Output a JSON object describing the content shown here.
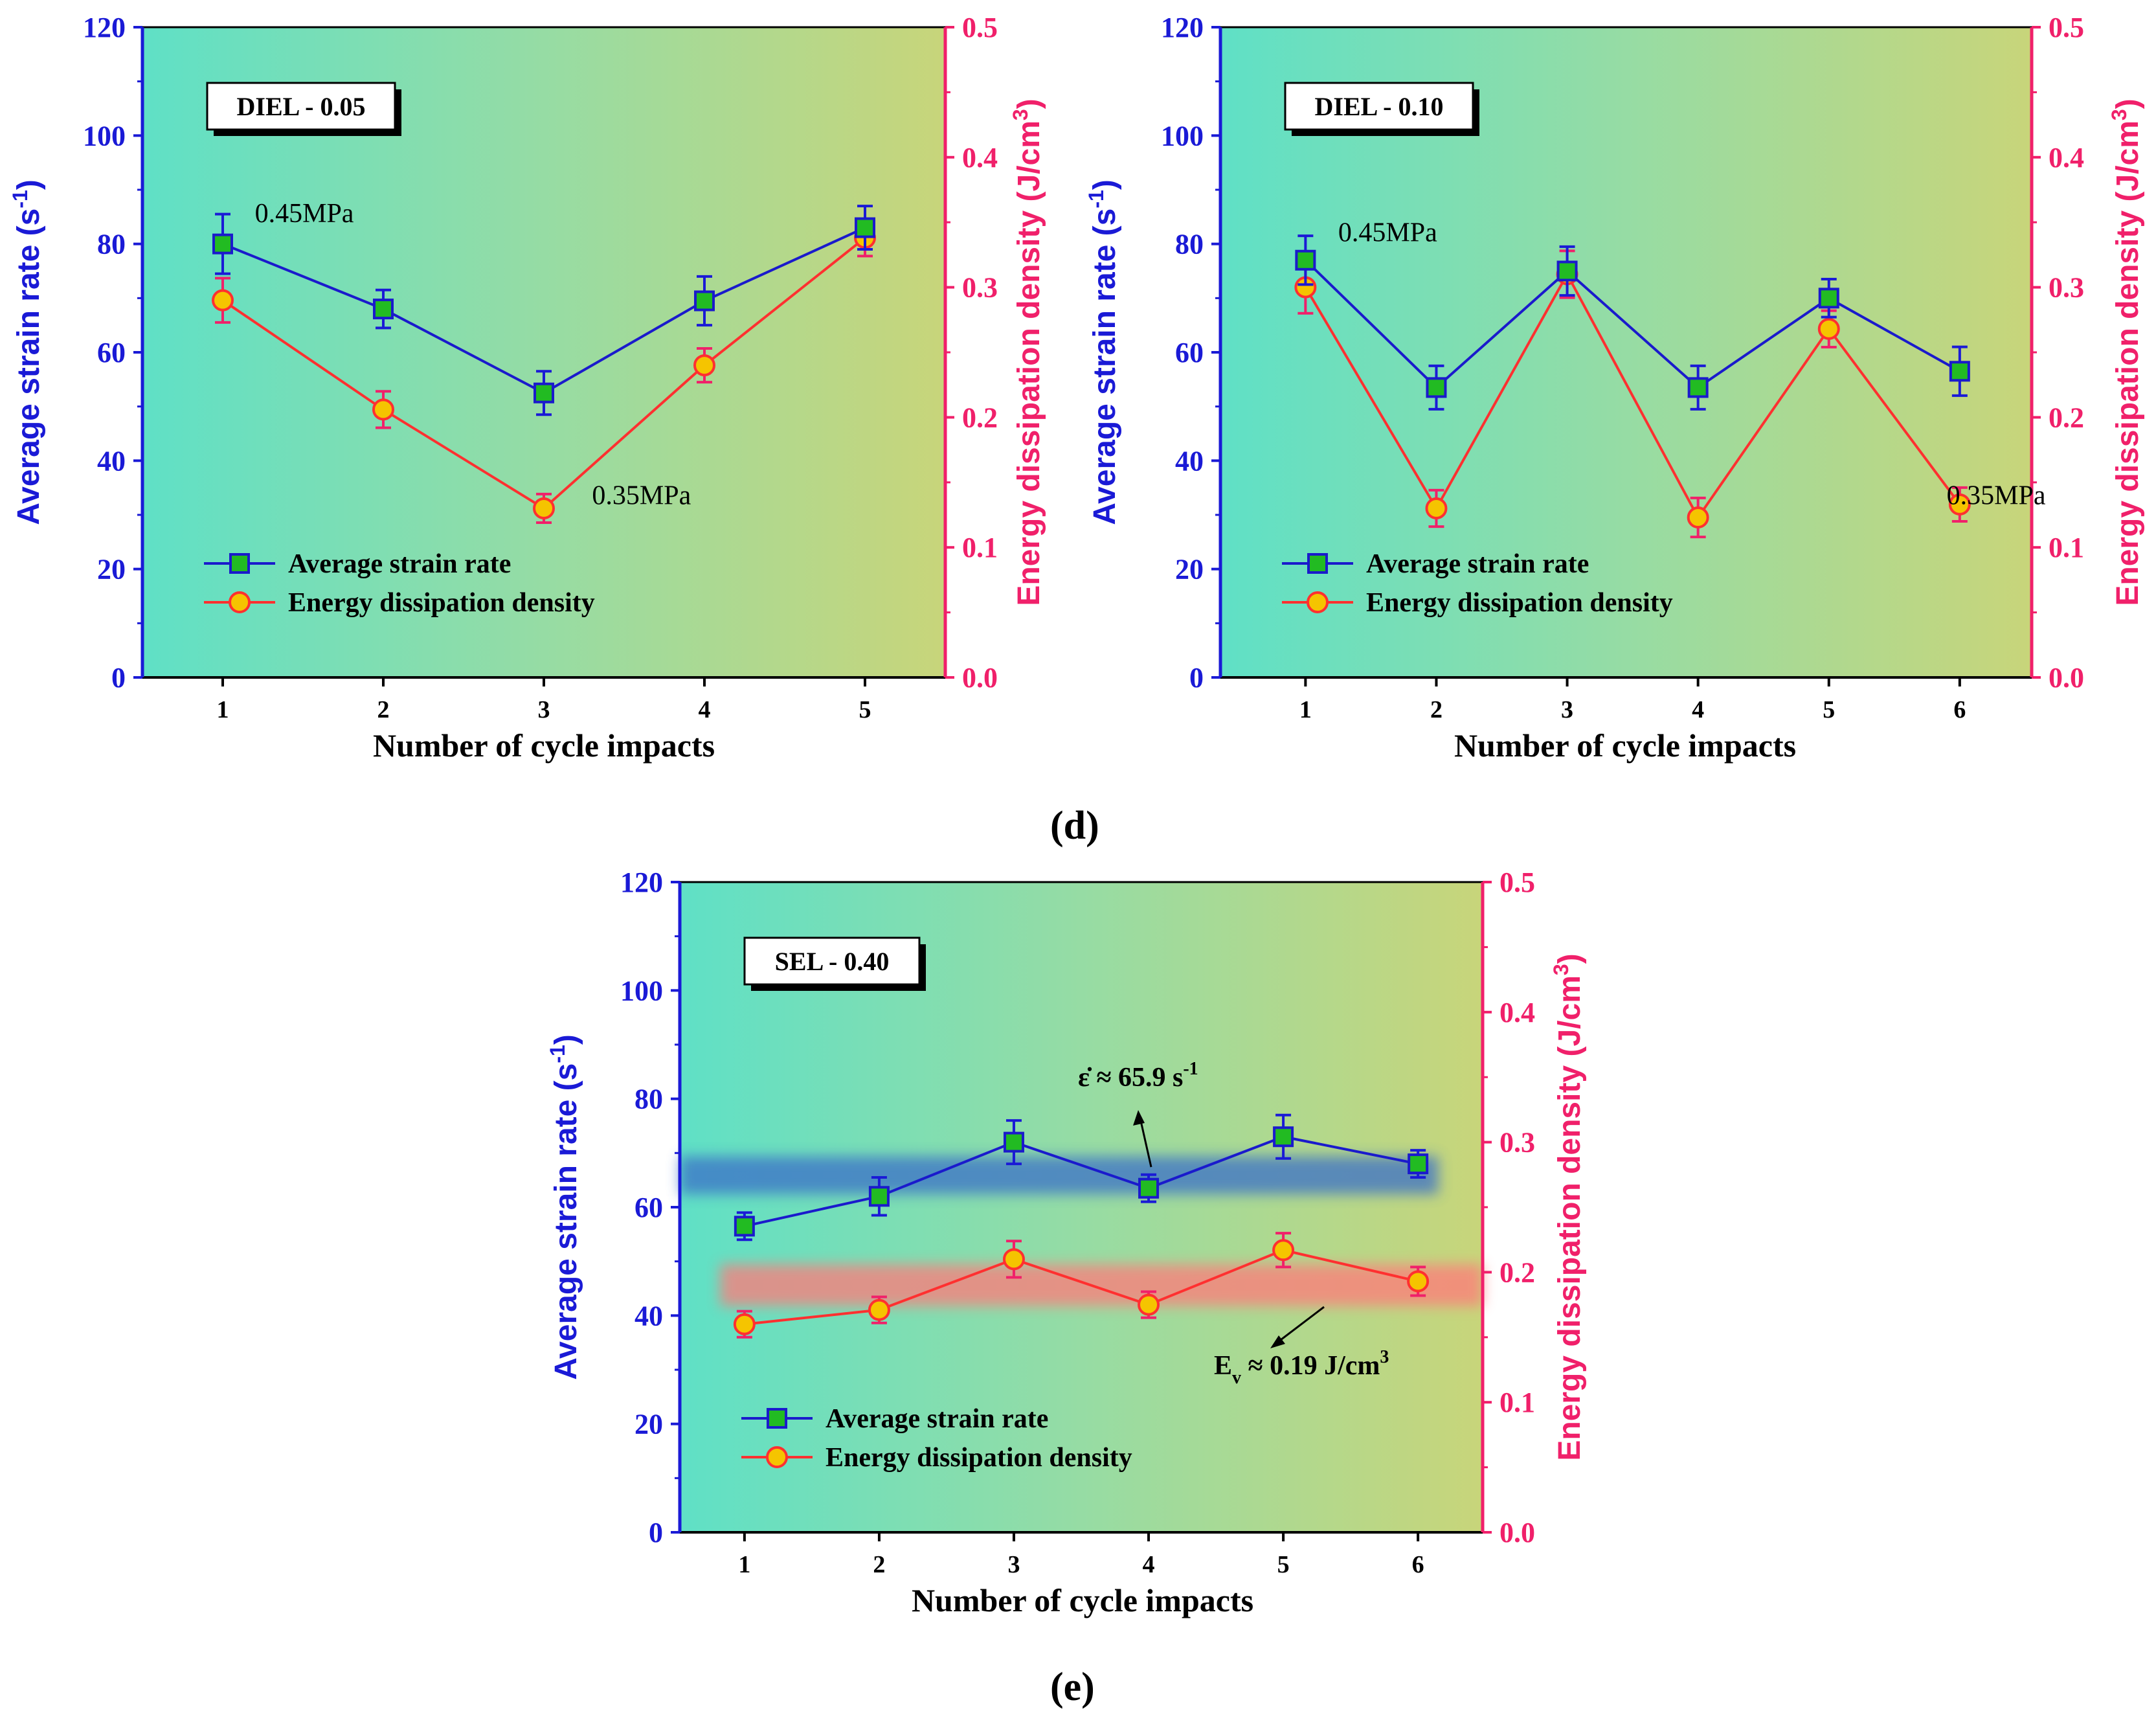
{
  "captions": {
    "d": "(d)",
    "e": "(e)"
  },
  "colors": {
    "left_axis": "#1a1ad6",
    "right_axis": "#f0206a",
    "strain_line": "#1a1acc",
    "strain_marker_fill": "#22bb22",
    "energy_line": "#ff3030",
    "energy_marker_fill": "#f5c400",
    "bg_left": "#5fe0c6",
    "bg_mid": "#96dca4",
    "bg_right": "#c8d57a",
    "band_blue": "#3a6fc8",
    "band_red": "#ff7a7a"
  },
  "chart_data": [
    {
      "type": "line",
      "title": "DIEL - 0.05",
      "xlabel": "Number of cycle impacts",
      "ylabel_left": "Average strain rate (s",
      "ylabel_left_sup": "-1",
      "ylabel_left_end": ")",
      "ylabel_right": "Energy dissipation density (J/cm",
      "ylabel_right_sup": "3",
      "ylabel_right_end": ")",
      "x": [
        1,
        2,
        3,
        4,
        5
      ],
      "xlim": [
        0.5,
        5.5
      ],
      "ylim_left": [
        0,
        120
      ],
      "ylim_right": [
        0,
        0.5
      ],
      "yticks_left": [
        "0",
        "20",
        "40",
        "60",
        "80",
        "100",
        "120"
      ],
      "yticks_right": [
        "0.0",
        "0.1",
        "0.2",
        "0.3",
        "0.4",
        "0.5"
      ],
      "xticks": [
        "1",
        "2",
        "3",
        "4",
        "5"
      ],
      "series": [
        {
          "name": "Average strain rate",
          "axis": "left",
          "values": [
            80,
            68,
            52.5,
            69.5,
            83
          ],
          "errors": [
            5.5,
            3.5,
            4,
            4.5,
            4
          ]
        },
        {
          "name": "Energy dissipation density",
          "axis": "right",
          "values": [
            0.29,
            0.206,
            0.13,
            0.24,
            0.338
          ],
          "errors": [
            0.017,
            0.014,
            0.011,
            0.013,
            0.014
          ]
        }
      ],
      "annotations": [
        {
          "text": "0.45MPa",
          "x": 1.2,
          "y_left": 84
        },
        {
          "text": "0.35MPa",
          "x": 3.3,
          "y_left": 32
        }
      ],
      "legend": "bottom-left"
    },
    {
      "type": "line",
      "title": "DIEL - 0.10",
      "xlabel": "Number of cycle impacts",
      "ylabel_left": "Average strain rate (s",
      "ylabel_left_sup": "-1",
      "ylabel_left_end": ")",
      "ylabel_right": "Energy dissipation density (J/cm",
      "ylabel_right_sup": "3",
      "ylabel_right_end": ")",
      "x": [
        1,
        2,
        3,
        4,
        5,
        6
      ],
      "xlim": [
        0.35,
        6.55
      ],
      "ylim_left": [
        0,
        120
      ],
      "ylim_right": [
        0,
        0.5
      ],
      "yticks_left": [
        "0",
        "20",
        "40",
        "60",
        "80",
        "100",
        "120"
      ],
      "yticks_right": [
        "0.0",
        "0.1",
        "0.2",
        "0.3",
        "0.4",
        "0.5"
      ],
      "xticks": [
        "1",
        "2",
        "3",
        "4",
        "5",
        "6"
      ],
      "series": [
        {
          "name": "Average strain rate",
          "axis": "left",
          "values": [
            77,
            53.5,
            75,
            53.5,
            70,
            56.5
          ],
          "errors": [
            4.5,
            4,
            4.5,
            4,
            3.5,
            4.5
          ]
        },
        {
          "name": "Energy dissipation density",
          "axis": "right",
          "values": [
            0.3,
            0.13,
            0.31,
            0.123,
            0.268,
            0.133
          ],
          "errors": [
            0.02,
            0.014,
            0.018,
            0.015,
            0.014,
            0.013
          ]
        }
      ],
      "annotations": [
        {
          "text": "0.45MPa",
          "x": 1.25,
          "y_left": 80.5
        },
        {
          "text": "0.35MPa",
          "x": 5.9,
          "y_left": 32
        }
      ],
      "legend": "bottom-left"
    },
    {
      "type": "line",
      "title": "SEL - 0.40",
      "xlabel": "Number of cycle impacts",
      "ylabel_left": "Average strain rate (s",
      "ylabel_left_sup": "-1",
      "ylabel_left_end": ")",
      "ylabel_right": "Energy dissipation density (J/cm",
      "ylabel_right_sup": "3",
      "ylabel_right_end": ")",
      "x": [
        1,
        2,
        3,
        4,
        5,
        6
      ],
      "xlim": [
        0.52,
        6.48
      ],
      "ylim_left": [
        0,
        120
      ],
      "ylim_right": [
        0,
        0.5
      ],
      "yticks_left": [
        "0",
        "20",
        "40",
        "60",
        "80",
        "100",
        "120"
      ],
      "yticks_right": [
        "0.0",
        "0.1",
        "0.2",
        "0.3",
        "0.4",
        "0.5"
      ],
      "xticks": [
        "1",
        "2",
        "3",
        "4",
        "5",
        "6"
      ],
      "series": [
        {
          "name": "Average strain rate",
          "axis": "left",
          "values": [
            56.5,
            62,
            72,
            63.5,
            73,
            68
          ],
          "errors": [
            2.5,
            3.5,
            4,
            2.5,
            4,
            2.5
          ]
        },
        {
          "name": "Energy dissipation density",
          "axis": "right",
          "values": [
            0.16,
            0.171,
            0.21,
            0.175,
            0.217,
            0.193
          ],
          "errors": [
            0.01,
            0.01,
            0.014,
            0.01,
            0.013,
            0.011
          ]
        }
      ],
      "bands": [
        {
          "axis": "left",
          "center": 65.9,
          "half_width": 3.5,
          "x_from": 0.52,
          "x_to": 6.15,
          "color": "band_blue"
        },
        {
          "axis": "right",
          "center": 0.19,
          "half_width": 0.016,
          "x_from": 0.82,
          "x_to": 6.48,
          "color": "band_red"
        }
      ],
      "band_labels": [
        {
          "text_main": "ε̇ ≈ 65.9 s",
          "text_sup": "-1"
        },
        {
          "text_main": "E",
          "text_sub": "v",
          "text_mid": " ≈ 0.19 J/cm",
          "text_sup": "3"
        }
      ],
      "legend": "bottom-left"
    }
  ]
}
